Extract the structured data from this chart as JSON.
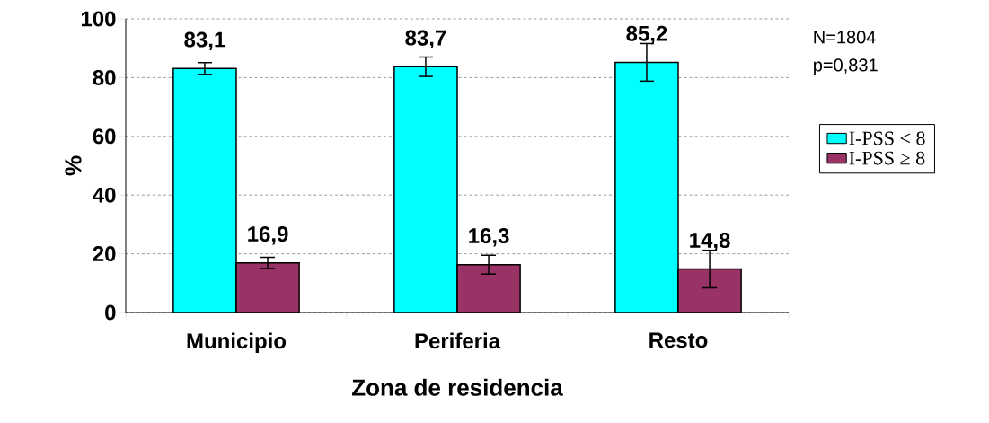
{
  "chart_data": {
    "type": "bar",
    "xlabel": "Zona de residencia",
    "ylabel": "%",
    "categories": [
      "Municipio",
      "Periferia",
      "Resto"
    ],
    "series": [
      {
        "name": "I-PSS < 8",
        "color": "#00ffff",
        "values": [
          83.1,
          83.7,
          85.2
        ],
        "errors": [
          2.0,
          3.3,
          6.4
        ],
        "value_labels": [
          "83,1",
          "83,7",
          "85,2"
        ]
      },
      {
        "name": "I-PSS ≥ 8",
        "color": "#993366",
        "values": [
          16.9,
          16.3,
          14.8
        ],
        "errors": [
          1.9,
          3.2,
          6.4
        ],
        "value_labels": [
          "16,9",
          "16,3",
          "14,8"
        ]
      }
    ],
    "ylim": [
      0,
      100
    ],
    "yticks": [
      0,
      20,
      40,
      60,
      80,
      100
    ],
    "grid": "y",
    "legend": "right",
    "annotations": [
      "N=1804",
      "p=0,831"
    ]
  }
}
